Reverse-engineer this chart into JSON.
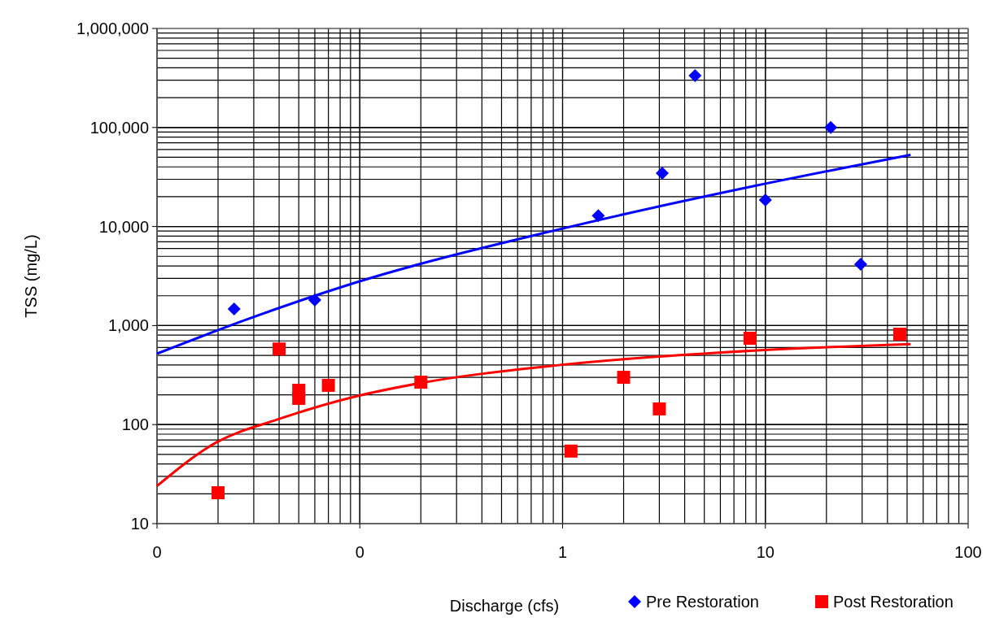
{
  "chart_data": {
    "type": "scatter",
    "xlabel": "Discharge (cfs)",
    "ylabel": "TSS (mg/L)",
    "log": "xy",
    "grid": true,
    "legend": "bottom right",
    "xlim": [
      0.01,
      100
    ],
    "xticks": [
      {
        "value": 0.01,
        "label": "0"
      },
      {
        "value": 0.1,
        "label": "0"
      },
      1,
      10,
      100
    ],
    "ylim": [
      10,
      1000000
    ],
    "yticks": [
      {
        "value": 10,
        "label": "10"
      },
      {
        "value": 100,
        "label": "100"
      },
      {
        "value": 1000,
        "label": "1,000"
      },
      {
        "value": 10000,
        "label": "10,000"
      },
      {
        "value": 100000,
        "label": "100,000"
      },
      {
        "value": 1000000,
        "label": "1,000,000"
      }
    ],
    "series": [
      {
        "name": "Pre Restoration",
        "color": "#0000ff",
        "marker": "diamond",
        "x": [
          0.024,
          0.06,
          1.5,
          3.1,
          4.5,
          10,
          21,
          29.5
        ],
        "values": [
          1470,
          1810,
          12900,
          34600,
          334000,
          18500,
          100000,
          4160
        ]
      },
      {
        "name": "Post Restoration",
        "color": "#ff0000",
        "marker": "square",
        "x": [
          0.02,
          0.04,
          0.05,
          0.05,
          0.07,
          0.2,
          1.1,
          2,
          3,
          8.4,
          46
        ],
        "values": [
          20.5,
          580,
          222,
          184,
          249,
          268,
          54,
          300,
          144,
          745,
          818
        ]
      },
      {
        "type": "line",
        "color": "#0000ff",
        "x": [
          0.01,
          0.027,
          0.094,
          0.97,
          9.1,
          52
        ],
        "values": [
          520,
          1130,
          2690,
          9400,
          26000,
          53000
        ]
      },
      {
        "type": "line",
        "color": "#ff0000",
        "x": [
          0.01,
          0.0196,
          0.039,
          0.094,
          0.19,
          0.97,
          9.1,
          52
        ],
        "values": [
          24,
          66,
          112,
          191,
          258,
          400,
          560,
          650
        ]
      }
    ]
  }
}
